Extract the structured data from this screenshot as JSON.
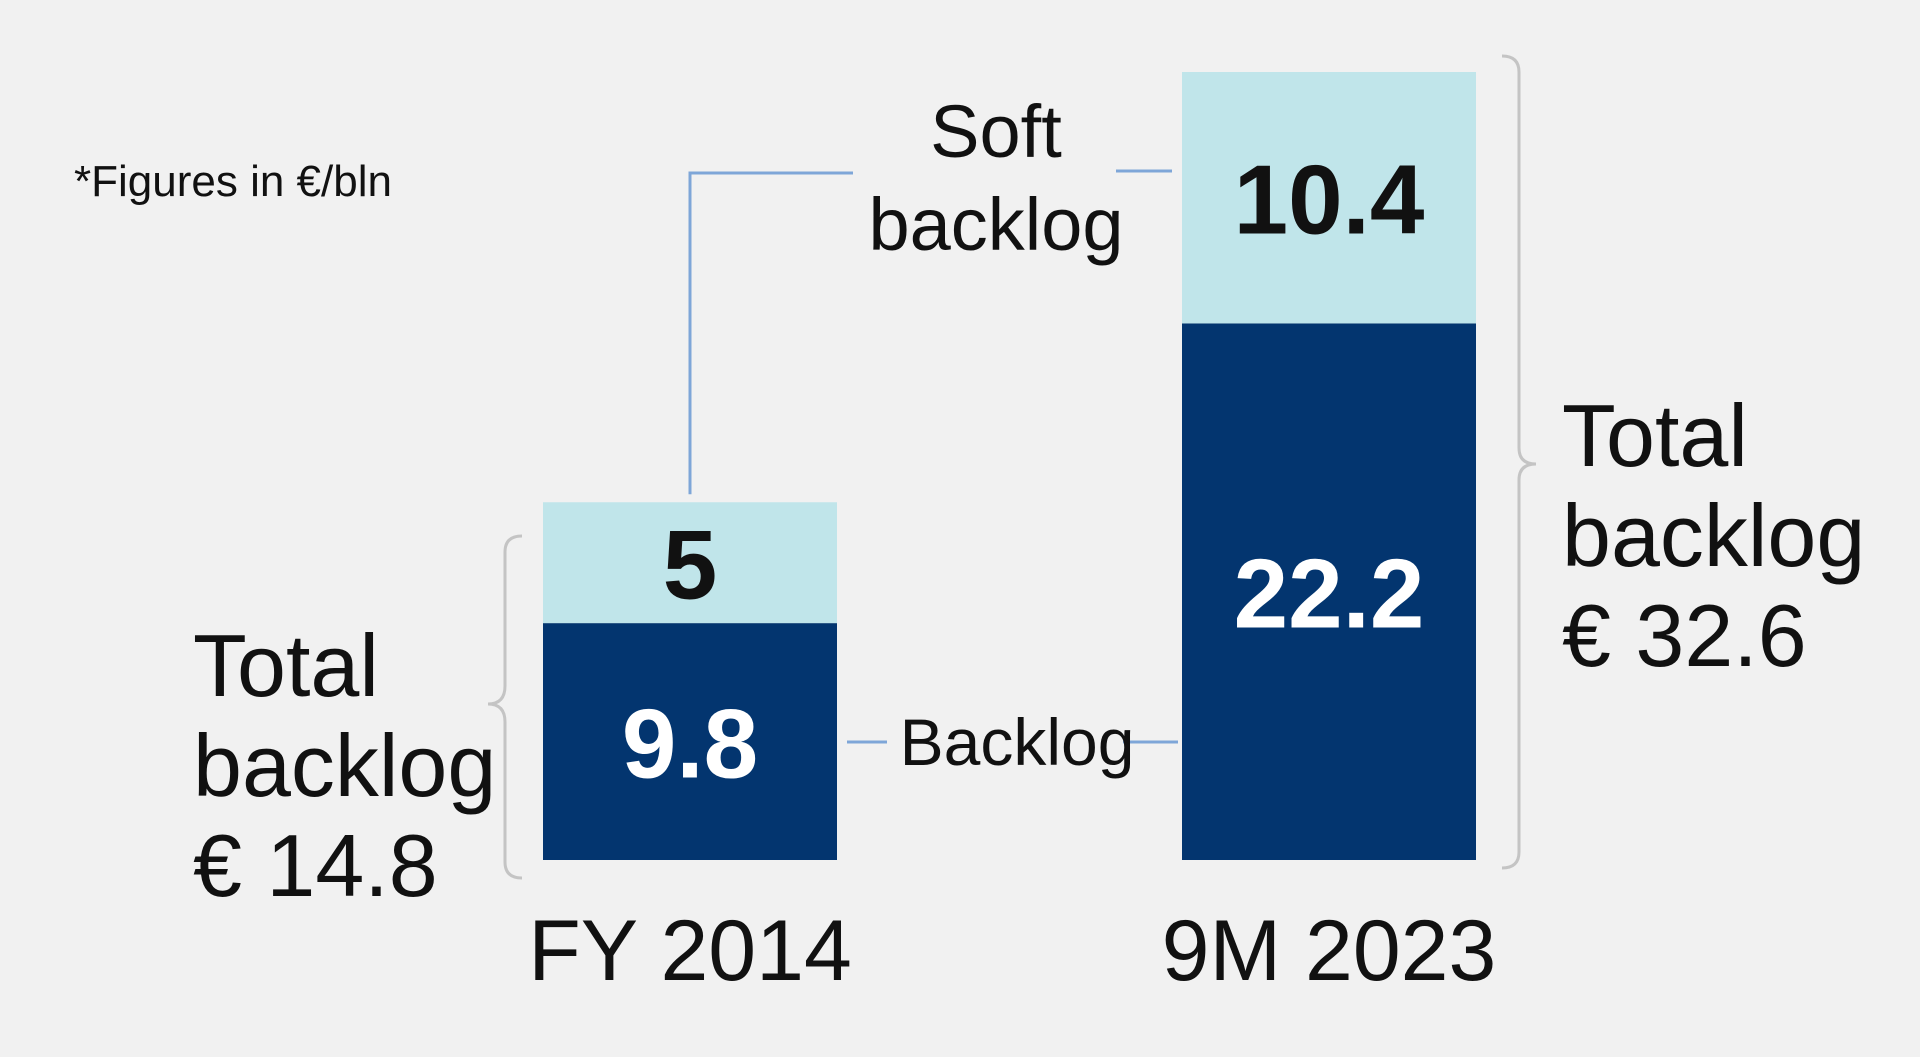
{
  "note": "*Figures in €/bln",
  "colors": {
    "background": "#f1f1f1",
    "backlog": "#03356f",
    "soft_backlog": "#c0e5ea",
    "connector": "#7ea6d8",
    "bracket": "#c4c4c4"
  },
  "chart_data": {
    "type": "bar",
    "stacked": true,
    "categories": [
      "FY 2014",
      "9M 2023"
    ],
    "series": [
      {
        "name": "Backlog",
        "values": [
          9.8,
          22.2
        ]
      },
      {
        "name": "Soft backlog",
        "values": [
          5,
          10.4
        ]
      }
    ],
    "value_labels": {
      "backlog": [
        "9.8",
        "22.2"
      ],
      "soft_backlog": [
        "5",
        "10.4"
      ]
    },
    "legend_labels": {
      "backlog": "Backlog",
      "soft_backlog": [
        "Soft",
        "backlog"
      ]
    },
    "totals": [
      {
        "lines": [
          "Total",
          "backlog",
          "€ 14.8"
        ],
        "value": 14.8
      },
      {
        "lines": [
          "Total",
          "backlog",
          "€ 32.6"
        ],
        "value": 32.6
      }
    ],
    "ylim": [
      0,
      32.6
    ],
    "grid": false
  }
}
